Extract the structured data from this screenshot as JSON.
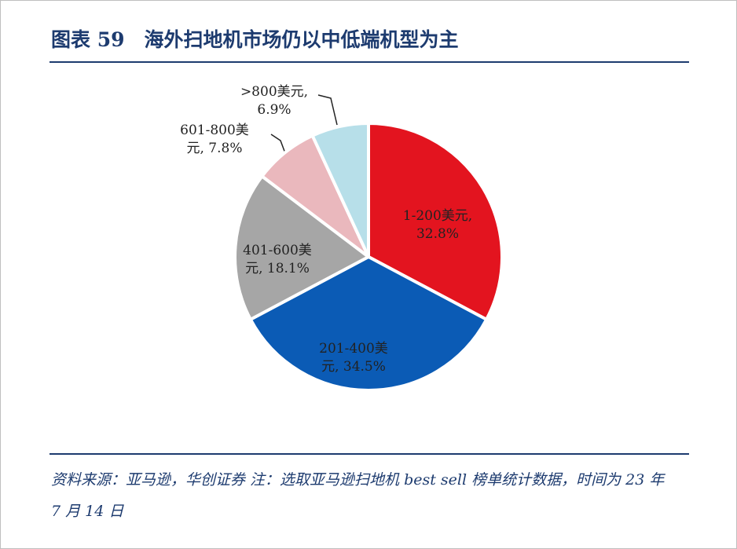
{
  "chart_data": {
    "type": "pie",
    "title": "图表 59　海外扫地机市场仍以中低端机型为主",
    "values": [
      32.8,
      34.5,
      18.1,
      7.8,
      6.9
    ],
    "value_labels": [
      "1-200美元, 32.8%",
      "201-400美元, 34.5%",
      "401-600美元, 18.1%",
      "601-800美元, 7.8%",
      ">800美元, 6.9%"
    ],
    "colors": [
      "#e3141f",
      "#0b5bb5",
      "#a6a6a6",
      "#eab8bd",
      "#b7dfe9"
    ],
    "source": "资料来源：亚马逊，华创证券 注：选取亚马逊扫地机 best sell 榜单统计数据，时间为 23 年 7 月 14 日"
  }
}
